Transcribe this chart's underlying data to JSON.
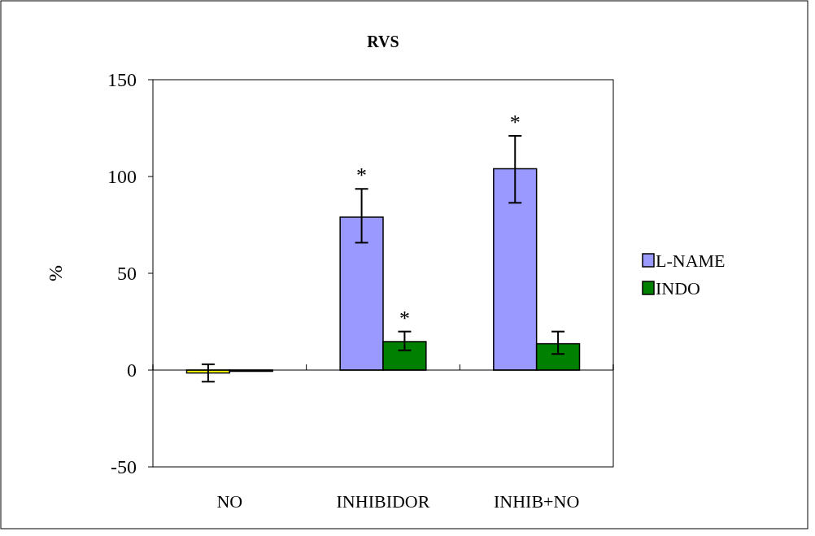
{
  "chart_data": {
    "type": "bar",
    "title": "RVS",
    "ylabel": "%",
    "categories": [
      "NO",
      "INHIBIDOR",
      "INHIB+NO"
    ],
    "series": [
      {
        "name": "L-NAME",
        "color": "#9999ff",
        "colors": [
          "#ffff00",
          "#9999ff",
          "#9999ff"
        ],
        "values": [
          -1.5,
          79,
          104
        ],
        "errors": [
          [
            -6,
            3
          ],
          [
            65.8,
            93.6
          ],
          [
            86.4,
            121
          ]
        ]
      },
      {
        "name": "INDO",
        "color": "#008000",
        "values": [
          0,
          14.7,
          13.6
        ],
        "errors": [
          null,
          [
            10.2,
            19.9
          ],
          [
            8.3,
            19.9
          ]
        ]
      }
    ],
    "ylim": [
      -50,
      150
    ],
    "yticks": [
      -50,
      0,
      50,
      100,
      150
    ],
    "legend": "right",
    "annotations": [
      {
        "text": "*",
        "x": "INHIBIDOR",
        "y": 79
      },
      {
        "text": "*",
        "x": "INHIBIDOR",
        "y": 14.7
      },
      {
        "text": "*",
        "x": "INHIB+NO",
        "y": 104
      }
    ]
  }
}
